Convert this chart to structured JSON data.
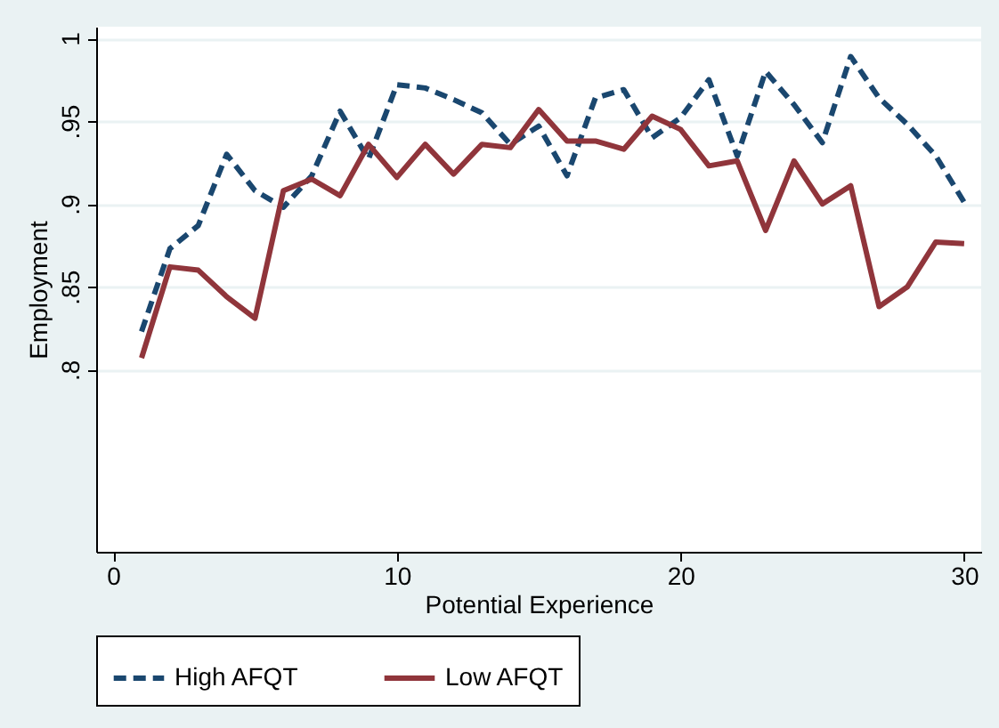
{
  "chart_data": {
    "type": "line",
    "xlabel": "Potential Experience",
    "ylabel": "Employment",
    "x": [
      1,
      2,
      3,
      4,
      5,
      6,
      7,
      8,
      9,
      10,
      11,
      12,
      13,
      14,
      15,
      16,
      17,
      18,
      19,
      20,
      21,
      22,
      23,
      24,
      25,
      26,
      27,
      28,
      29,
      30
    ],
    "xlim": [
      -0.6,
      30.6
    ],
    "xticks": [
      0,
      10,
      20,
      30
    ],
    "ylim": [
      0.69,
      1.007
    ],
    "yticks": [
      {
        "value": 0.8,
        "label": ".8"
      },
      {
        "value": 0.85,
        "label": ".85"
      },
      {
        "value": 0.9,
        "label": ".9"
      },
      {
        "value": 0.95,
        "label": ".95"
      },
      1
    ],
    "grid": "y",
    "legend": "bottom",
    "marker": "none",
    "series": [
      {
        "name": "High AFQT",
        "color": "#1a476f",
        "line_style": "dashed",
        "values": [
          0.823,
          0.873,
          0.887,
          0.93,
          0.908,
          0.898,
          0.917,
          0.956,
          0.927,
          0.972,
          0.97,
          0.963,
          0.955,
          0.936,
          0.947,
          0.917,
          0.964,
          0.969,
          0.94,
          0.952,
          0.975,
          0.929,
          0.98,
          0.96,
          0.937,
          0.989,
          0.964,
          0.948,
          0.929,
          0.901
        ]
      },
      {
        "name": "Low AFQT",
        "color": "#90353b",
        "line_style": "solid",
        "values": [
          0.807,
          0.862,
          0.86,
          0.844,
          0.831,
          0.908,
          0.915,
          0.905,
          0.936,
          0.916,
          0.936,
          0.918,
          0.936,
          0.934,
          0.957,
          0.938,
          0.938,
          0.933,
          0.953,
          0.945,
          0.923,
          0.926,
          0.884,
          0.926,
          0.9,
          0.911,
          0.838,
          0.85,
          0.877,
          0.876
        ]
      }
    ]
  }
}
